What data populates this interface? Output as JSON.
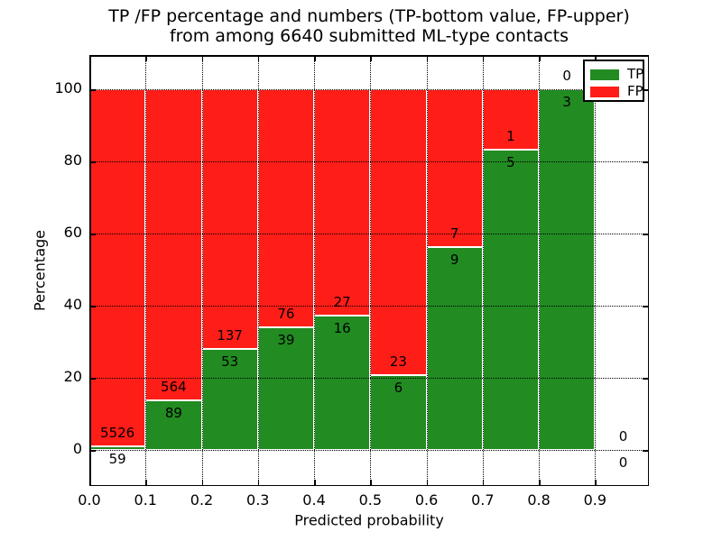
{
  "title": {
    "line1": "TP /FP percentage and numbers (TP-bottom value, FP-upper)",
    "line2": "from among 6640 submitted ML-type contacts"
  },
  "axes": {
    "ylabel": "Percentage",
    "xlabel": "Predicted probability",
    "yticks": [
      0,
      20,
      40,
      60,
      80,
      100
    ],
    "xticks": [
      "0.0",
      "0.1",
      "0.2",
      "0.3",
      "0.4",
      "0.5",
      "0.6",
      "0.7",
      "0.8",
      "0.9"
    ]
  },
  "legend": {
    "items": [
      {
        "label": "TP",
        "color": "#228b22"
      },
      {
        "label": "FP",
        "color": "#ff1d17"
      }
    ]
  },
  "chart_data": {
    "type": "bar",
    "stacked": true,
    "normalized_to_percent": true,
    "title": "TP /FP percentage and numbers (TP-bottom value, FP-upper) from among 6640 submitted ML-type contacts",
    "xlabel": "Predicted probability",
    "ylabel": "Percentage",
    "total_contacts": 6640,
    "bin_edges": [
      0.0,
      0.1,
      0.2,
      0.3,
      0.4,
      0.5,
      0.6,
      0.7,
      0.8,
      0.9,
      1.0
    ],
    "series": [
      {
        "name": "TP",
        "color": "#228b22",
        "counts": [
          59,
          89,
          53,
          39,
          16,
          6,
          9,
          5,
          3,
          0
        ]
      },
      {
        "name": "FP",
        "color": "#ff1d17",
        "counts": [
          5526,
          564,
          137,
          76,
          27,
          23,
          7,
          1,
          0,
          0
        ]
      }
    ],
    "tp_percent_of_bin": [
      1.06,
      13.63,
      27.89,
      33.91,
      37.21,
      20.69,
      56.25,
      83.33,
      100.0,
      null
    ],
    "ylim": [
      -10,
      110
    ],
    "xlim": [
      0.0,
      1.0
    ],
    "grid": true,
    "grid_style": "dotted",
    "legend_position": "upper right",
    "annotation_rule": "FP count printed above TP/FP boundary, TP count printed below boundary"
  }
}
